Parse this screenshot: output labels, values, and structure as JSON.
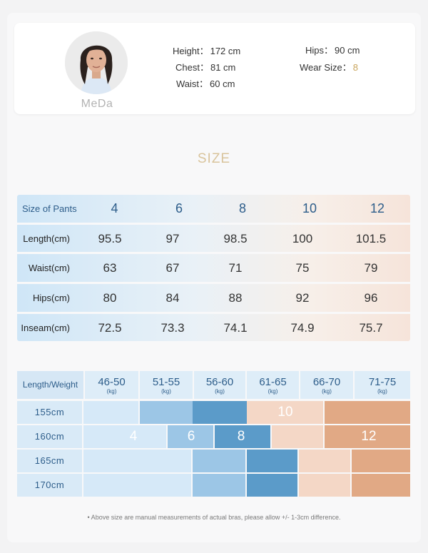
{
  "model": {
    "name": "MeDa",
    "height_label": "Height：",
    "height_value": "172 cm",
    "chest_label": "Chest：",
    "chest_value": "81 cm",
    "waist_label": "Waist：",
    "waist_value": "60 cm",
    "hips_label": "Hips：",
    "hips_value": "90 cm",
    "wear_label": "Wear Size：",
    "wear_value": "8",
    "accent_color": "#c9a55c"
  },
  "size_title": "SIZE",
  "pants_table": {
    "header_label": "Size of Pants",
    "sizes": [
      "4",
      "6",
      "8",
      "10",
      "12"
    ],
    "rows": [
      {
        "label": "Length(cm)",
        "values": [
          "95.5",
          "97",
          "98.5",
          "100",
          "101.5"
        ]
      },
      {
        "label": "Waist(cm)",
        "values": [
          "63",
          "67",
          "71",
          "75",
          "79"
        ]
      },
      {
        "label": "Hips(cm)",
        "values": [
          "80",
          "84",
          "88",
          "92",
          "96"
        ]
      },
      {
        "label": "Inseam(cm)",
        "values": [
          "72.5",
          "73.3",
          "74.1",
          "74.9",
          "75.7"
        ]
      }
    ]
  },
  "weight_table": {
    "header_label": "Length/Weight",
    "unit": "(kg)",
    "weights": [
      "46-50",
      "51-55",
      "56-60",
      "61-65",
      "66-70",
      "71-75"
    ],
    "heights": [
      "155cm",
      "160cm",
      "165cm",
      "170cm"
    ],
    "size_labels": {
      "s4": "4",
      "s6": "6",
      "s8": "8",
      "s10": "10",
      "s12": "12"
    },
    "colors": {
      "size4": "#d6e9f8",
      "size6": "#9cc6e6",
      "size8": "#5b9bc9",
      "size10": "#f4d7c6",
      "size12": "#e1a985"
    }
  },
  "footnote": "• Above size are manual measurements of actual bras, please allow +/- 1-3cm difference."
}
